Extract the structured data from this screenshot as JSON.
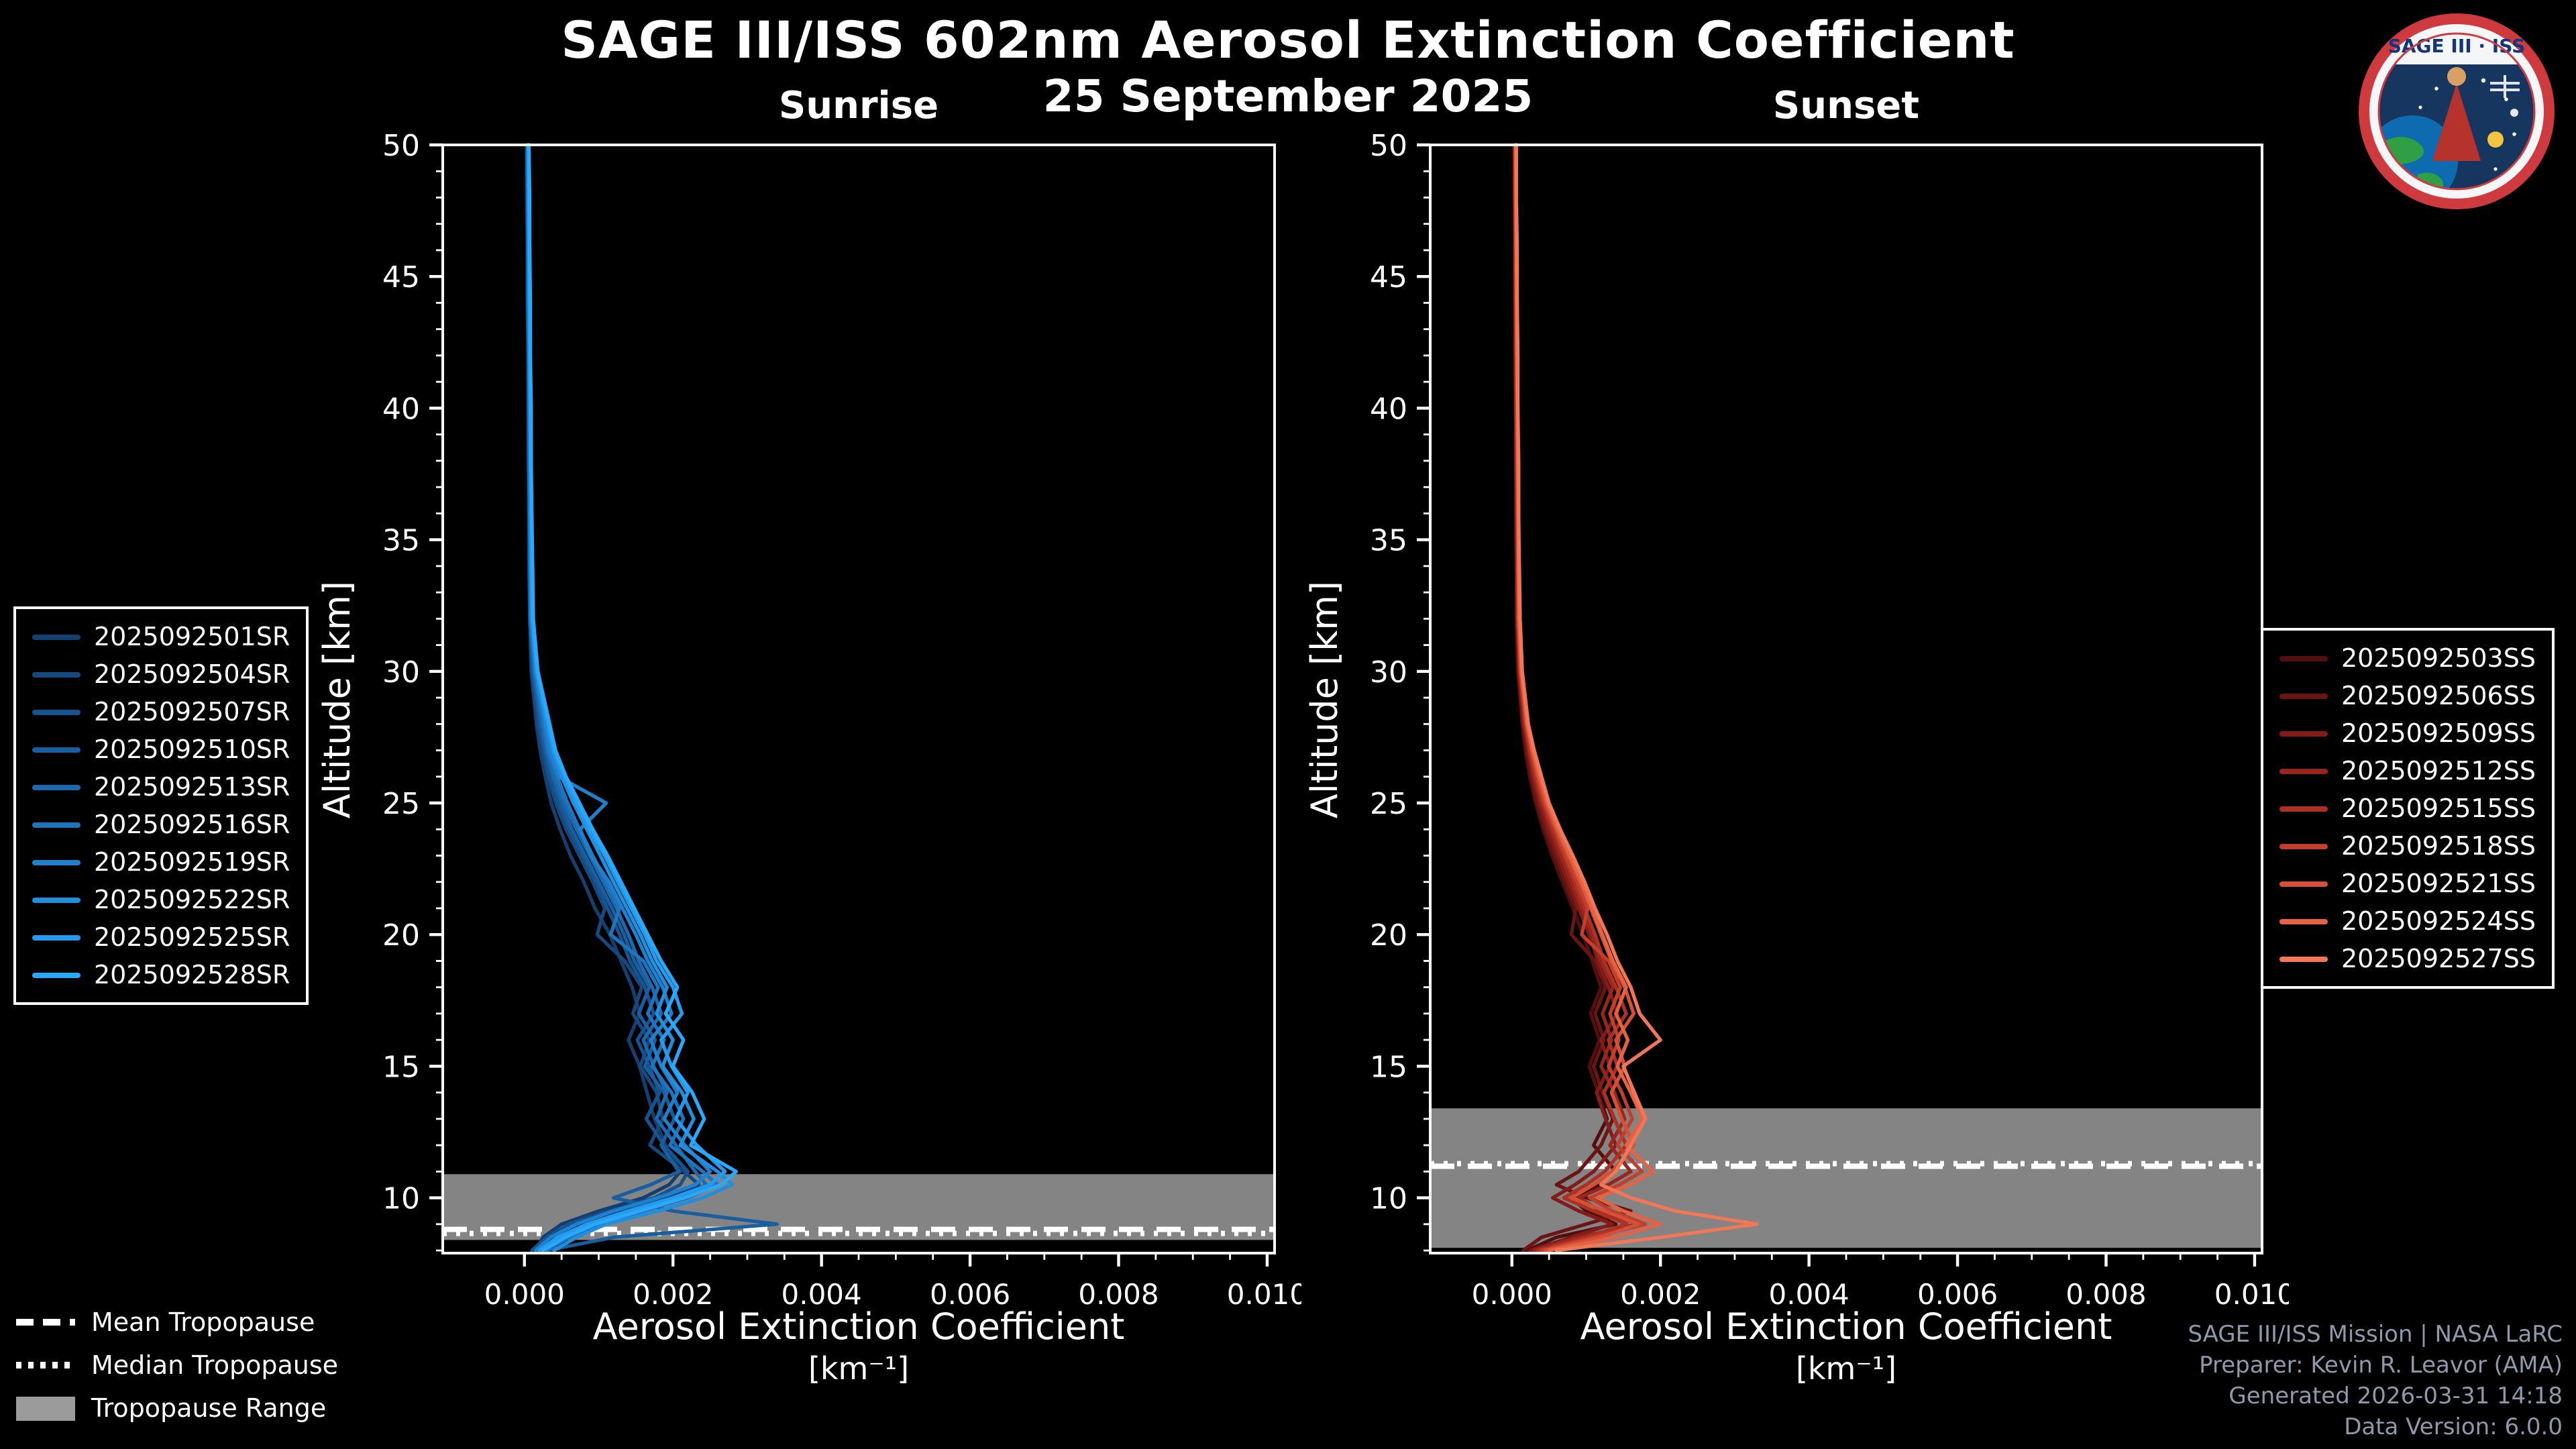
{
  "title": "SAGE III/ISS 602nm Aerosol Extinction Coefficient",
  "subtitle": "25 September 2025",
  "logo": {
    "title": "SAGE III · ISS"
  },
  "footer": {
    "lines": [
      "SAGE III/ISS Mission | NASA LaRC",
      "Preparer: Kevin R. Leavor (AMA)",
      "Generated 2026-03-31 14:18",
      "Data Version: 6.0.0"
    ]
  },
  "tropopause_legend": [
    {
      "label": "Mean Tropopause",
      "style": "dashed"
    },
    {
      "label": "Median Tropopause",
      "style": "dotted"
    },
    {
      "label": "Tropopause Range",
      "style": "band"
    }
  ],
  "chart_data": {
    "type": "line",
    "xlabel": "Aerosol Extinction Coefficient",
    "xunits": "[km⁻¹]",
    "ylabel": "Altitude [km]",
    "xlim": [
      -0.0011,
      0.0101
    ],
    "ylim": [
      7.9,
      50
    ],
    "xticks": [
      0,
      0.002,
      0.004,
      0.006,
      0.008,
      0.01
    ],
    "xtick_labels": [
      "0.000",
      "0.002",
      "0.004",
      "0.006",
      "0.008",
      "0.010"
    ],
    "yticks": [
      10,
      15,
      20,
      25,
      30,
      35,
      40,
      45,
      50
    ],
    "value_scale": 0.0001,
    "altitudes_km": [
      50,
      48,
      46,
      44,
      42,
      40,
      38,
      36,
      34,
      32,
      30,
      28,
      27,
      26,
      25,
      24,
      23,
      22,
      21,
      20,
      19,
      18,
      17,
      16,
      15,
      14,
      13,
      12,
      11,
      10.5,
      10,
      9.5,
      9,
      8.5,
      8
    ],
    "panels": [
      {
        "id": "sunrise",
        "title": "Sunrise",
        "tropopause": {
          "mean_km": 8.8,
          "median_km": 8.65,
          "range_km": [
            8.4,
            10.9
          ]
        },
        "series": [
          {
            "name": "2025092501SR",
            "color": "#143f6e",
            "values": [
              0.3,
              0.3,
              0.4,
              0.4,
              0.5,
              0.5,
              0.5,
              0.6,
              0.6,
              0.7,
              0.9,
              1.6,
              2.1,
              2.8,
              3.6,
              4.8,
              6.2,
              8.0,
              9.5,
              11.5,
              13.0,
              14.5,
              15.5,
              14.0,
              15.5,
              16.5,
              17.5,
              19.0,
              21.0,
              19.5,
              16.0,
              10.0,
              5.0,
              2.5,
              1.5
            ]
          },
          {
            "name": "2025092504SR",
            "color": "#16497e",
            "values": [
              0.4,
              0.4,
              0.4,
              0.5,
              0.5,
              0.5,
              0.6,
              0.6,
              0.7,
              0.7,
              1.0,
              1.8,
              2.4,
              3.2,
              4.2,
              5.6,
              7.4,
              9.2,
              10.8,
              9.8,
              13.5,
              15.8,
              14.6,
              16.8,
              15.6,
              17.8,
              18.6,
              16.9,
              21.5,
              23.5,
              19.5,
              13.5,
              7.5,
              4.0,
              2.0
            ]
          },
          {
            "name": "2025092507SR",
            "color": "#17538e",
            "values": [
              0.3,
              0.4,
              0.4,
              0.4,
              0.5,
              0.6,
              0.6,
              0.6,
              0.7,
              0.8,
              1.1,
              2.0,
              2.6,
              3.4,
              4.6,
              6.0,
              7.8,
              9.6,
              11.2,
              12.8,
              14.2,
              16.2,
              17.4,
              15.2,
              16.8,
              18.2,
              16.4,
              18.8,
              22.0,
              21.0,
              17.5,
              11.5,
              6.0,
              3.0,
              1.0
            ]
          },
          {
            "name": "2025092510SR",
            "color": "#195e9e",
            "values": [
              0.4,
              0.4,
              0.5,
              0.5,
              0.5,
              0.6,
              0.6,
              0.7,
              0.7,
              0.8,
              1.2,
              2.2,
              2.8,
              3.8,
              5.0,
              6.4,
              8.2,
              10.0,
              11.8,
              13.4,
              14.8,
              16.8,
              15.4,
              17.6,
              16.2,
              18.8,
              20.2,
              18.4,
              20.8,
              17.0,
              12.0,
              20.0,
              34.0,
              12.0,
              3.0
            ]
          },
          {
            "name": "2025092513SR",
            "color": "#1b69ae",
            "values": [
              0.4,
              0.5,
              0.5,
              0.5,
              0.6,
              0.6,
              0.7,
              0.7,
              0.8,
              0.8,
              1.3,
              2.4,
              3.0,
              4.0,
              5.4,
              7.0,
              8.8,
              10.6,
              12.4,
              14.0,
              15.4,
              17.2,
              18.4,
              16.0,
              17.4,
              19.2,
              17.8,
              20.4,
              23.0,
              24.5,
              21.0,
              15.0,
              9.0,
              5.0,
              2.5
            ]
          },
          {
            "name": "2025092516SR",
            "color": "#1d75be",
            "values": [
              0.5,
              0.5,
              0.5,
              0.6,
              0.6,
              0.7,
              0.7,
              0.8,
              0.8,
              0.9,
              1.4,
              2.6,
              3.2,
              4.4,
              5.8,
              7.4,
              9.2,
              11.0,
              12.8,
              11.6,
              16.0,
              18.0,
              16.6,
              18.8,
              17.2,
              19.8,
              21.4,
              19.6,
              24.0,
              26.0,
              22.0,
              16.0,
              10.0,
              6.0,
              3.0
            ]
          },
          {
            "name": "2025092519SR",
            "color": "#1f81ce",
            "values": [
              0.5,
              0.5,
              0.6,
              0.6,
              0.7,
              0.7,
              0.8,
              0.8,
              0.9,
              0.9,
              1.5,
              2.8,
              3.4,
              4.6,
              11.0,
              7.5,
              9.0,
              11.4,
              13.2,
              15.0,
              16.6,
              18.6,
              19.8,
              17.0,
              18.4,
              20.6,
              18.8,
              21.6,
              25.0,
              23.0,
              18.0,
              12.0,
              7.0,
              3.5,
              1.5
            ]
          },
          {
            "name": "2025092522SR",
            "color": "#228ede",
            "values": [
              0.5,
              0.6,
              0.6,
              0.7,
              0.7,
              0.8,
              0.8,
              0.9,
              0.9,
              1.0,
              1.6,
              3.0,
              3.8,
              5.0,
              6.6,
              8.4,
              10.2,
              12.0,
              13.8,
              15.6,
              17.2,
              19.2,
              17.8,
              20.0,
              18.6,
              21.2,
              22.8,
              21.0,
              26.0,
              28.0,
              24.0,
              18.0,
              11.0,
              7.0,
              4.0
            ]
          },
          {
            "name": "2025092525SR",
            "color": "#259bee",
            "values": [
              0.6,
              0.6,
              0.7,
              0.7,
              0.8,
              0.8,
              0.9,
              0.9,
              1.0,
              1.1,
              1.7,
              3.2,
              4.0,
              5.4,
              7.0,
              8.8,
              10.8,
              12.6,
              14.4,
              16.2,
              17.8,
              20.0,
              21.2,
              18.4,
              19.8,
              22.0,
              20.4,
              23.2,
              27.0,
              25.0,
              20.0,
              14.0,
              8.5,
              4.5,
              2.0
            ]
          },
          {
            "name": "2025092528SR",
            "color": "#29a9fd",
            "values": [
              0.6,
              0.7,
              0.7,
              0.8,
              0.8,
              0.9,
              0.9,
              1.0,
              1.1,
              1.2,
              1.8,
              3.4,
              4.2,
              5.6,
              7.4,
              9.2,
              11.2,
              13.0,
              14.8,
              16.6,
              18.4,
              20.6,
              19.0,
              21.4,
              20.0,
              22.6,
              24.2,
              22.4,
              28.5,
              26.5,
              21.5,
              15.5,
              9.5,
              5.5,
              2.5
            ]
          }
        ]
      },
      {
        "id": "sunset",
        "title": "Sunset",
        "tropopause": {
          "mean_km": 11.2,
          "median_km": 11.3,
          "range_km": [
            8.1,
            13.4
          ]
        },
        "series": [
          {
            "name": "2025092503SS",
            "color": "#520f0f",
            "values": [
              0.3,
              0.3,
              0.4,
              0.4,
              0.4,
              0.5,
              0.5,
              0.5,
              0.6,
              0.6,
              0.8,
              1.4,
              1.8,
              2.4,
              3.2,
              4.2,
              5.4,
              6.8,
              8.2,
              9.6,
              10.8,
              12.0,
              10.6,
              11.8,
              10.4,
              11.6,
              12.8,
              11.0,
              14.0,
              12.0,
              8.0,
              10.0,
              14.0,
              6.0,
              2.0
            ]
          },
          {
            "name": "2025092506SS",
            "color": "#6a1514",
            "values": [
              0.3,
              0.4,
              0.4,
              0.4,
              0.5,
              0.5,
              0.5,
              0.6,
              0.6,
              0.7,
              0.9,
              1.5,
              2.0,
              2.6,
              3.4,
              4.5,
              5.8,
              7.2,
              8.6,
              8.0,
              11.2,
              12.6,
              11.2,
              12.4,
              11.0,
              12.2,
              13.6,
              12.0,
              9.0,
              6.0,
              10.0,
              16.0,
              10.0,
              4.0,
              1.5
            ]
          },
          {
            "name": "2025092509SS",
            "color": "#821c18",
            "values": [
              0.4,
              0.4,
              0.4,
              0.5,
              0.5,
              0.5,
              0.6,
              0.6,
              0.7,
              0.7,
              1.0,
              1.6,
              2.2,
              2.8,
              3.7,
              4.8,
              6.2,
              7.6,
              9.0,
              10.4,
              11.6,
              13.0,
              14.2,
              12.0,
              13.2,
              11.4,
              12.6,
              14.0,
              11.0,
              8.5,
              5.5,
              9.0,
              13.5,
              8.0,
              2.5
            ]
          },
          {
            "name": "2025092512SS",
            "color": "#98261d",
            "values": [
              0.4,
              0.4,
              0.5,
              0.5,
              0.5,
              0.6,
              0.6,
              0.7,
              0.7,
              0.8,
              1.0,
              1.7,
              2.3,
              3.0,
              4.0,
              5.2,
              6.6,
              8.0,
              9.4,
              10.8,
              12.0,
              13.6,
              12.2,
              13.4,
              12.0,
              13.8,
              15.2,
              13.2,
              16.0,
              13.0,
              9.0,
              12.0,
              17.0,
              9.0,
              3.0
            ]
          },
          {
            "name": "2025092515SS",
            "color": "#ad3123",
            "values": [
              0.4,
              0.5,
              0.5,
              0.5,
              0.6,
              0.6,
              0.7,
              0.7,
              0.8,
              0.8,
              1.1,
              1.8,
              2.4,
              3.2,
              4.2,
              5.5,
              7.0,
              8.4,
              9.8,
              11.2,
              12.4,
              14.0,
              15.4,
              13.0,
              14.2,
              12.4,
              13.8,
              15.4,
              12.5,
              10.0,
              7.0,
              11.0,
              15.5,
              10.0,
              3.5
            ]
          },
          {
            "name": "2025092518SS",
            "color": "#c23f2b",
            "values": [
              0.5,
              0.5,
              0.5,
              0.6,
              0.6,
              0.7,
              0.7,
              0.8,
              0.8,
              0.9,
              1.2,
              1.9,
              2.6,
              3.4,
              4.4,
              5.8,
              7.2,
              8.8,
              10.2,
              9.4,
              13.0,
              14.6,
              13.2,
              14.4,
              13.0,
              14.8,
              16.2,
              14.2,
              17.5,
              14.5,
              10.5,
              13.5,
              18.0,
              11.0,
              4.0
            ]
          },
          {
            "name": "2025092521SS",
            "color": "#d55036",
            "values": [
              0.5,
              0.5,
              0.6,
              0.6,
              0.7,
              0.7,
              0.8,
              0.8,
              0.9,
              0.9,
              1.2,
              2.0,
              2.7,
              3.6,
              4.6,
              6.0,
              7.6,
              9.2,
              10.6,
              12.0,
              13.4,
              15.2,
              16.4,
              14.0,
              15.2,
              13.4,
              14.8,
              16.4,
              13.5,
              11.0,
              8.0,
              12.5,
              17.0,
              12.0,
              4.5
            ]
          },
          {
            "name": "2025092524SS",
            "color": "#e56245",
            "values": [
              0.5,
              0.6,
              0.6,
              0.7,
              0.7,
              0.8,
              0.8,
              0.9,
              0.9,
              1.0,
              1.3,
              2.1,
              2.8,
              3.8,
              4.8,
              6.2,
              7.8,
              9.4,
              10.8,
              12.2,
              13.6,
              15.4,
              14.0,
              15.6,
              14.2,
              16.0,
              17.6,
              15.4,
              19.0,
              16.0,
              11.5,
              15.0,
              20.0,
              14.0,
              5.0
            ]
          },
          {
            "name": "2025092527SS",
            "color": "#f17757",
            "values": [
              0.6,
              0.6,
              0.7,
              0.7,
              0.8,
              0.8,
              0.9,
              0.9,
              1.0,
              1.1,
              1.4,
              2.2,
              3.0,
              4.0,
              5.0,
              6.5,
              8.2,
              9.8,
              11.2,
              12.8,
              14.2,
              16.0,
              17.2,
              20.0,
              15.0,
              16.5,
              18.0,
              16.0,
              14.0,
              12.0,
              16.0,
              22.0,
              33.0,
              20.0,
              6.0
            ]
          }
        ]
      }
    ]
  }
}
